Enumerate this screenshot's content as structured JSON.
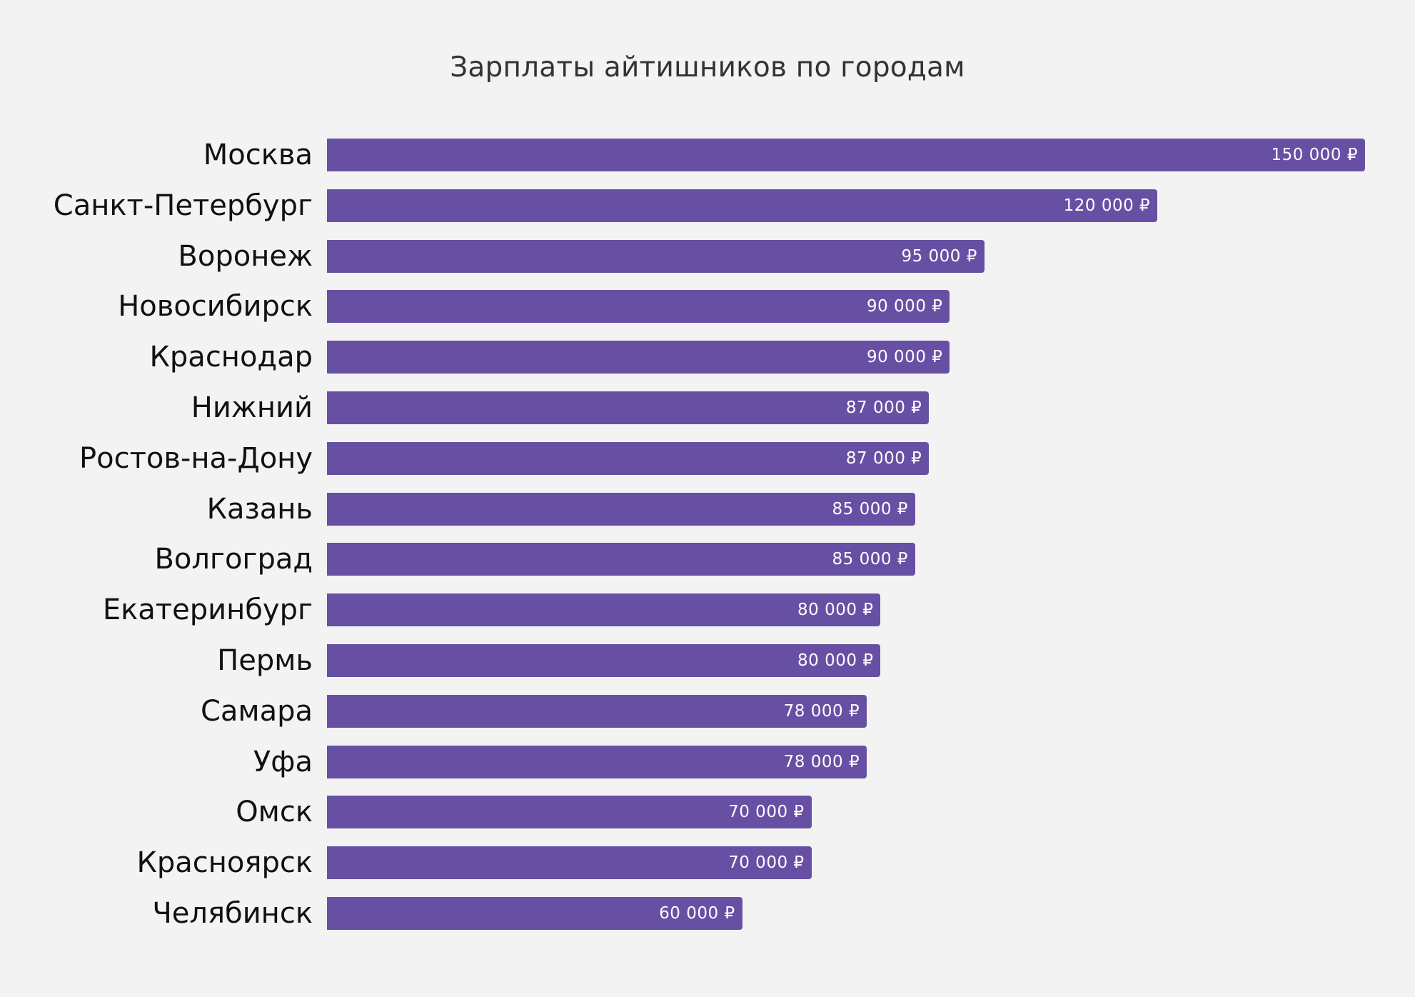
{
  "chart": {
    "title": "Зарплаты айтишников по городам",
    "bar_color": "#6750a4",
    "background": "#f3f3f4",
    "rows": [
      {
        "city": "Москва",
        "value": 150000,
        "label": "150 000 ₽"
      },
      {
        "city": "Санкт-Петербург",
        "value": 120000,
        "label": "120 000 ₽"
      },
      {
        "city": "Воронеж",
        "value": 95000,
        "label": "95 000 ₽"
      },
      {
        "city": "Новосибирск",
        "value": 90000,
        "label": "90 000 ₽"
      },
      {
        "city": "Краснодар",
        "value": 90000,
        "label": "90 000 ₽"
      },
      {
        "city": "Нижний",
        "value": 87000,
        "label": "87 000 ₽"
      },
      {
        "city": "Ростов-на-Дону",
        "value": 87000,
        "label": "87 000 ₽"
      },
      {
        "city": "Казань",
        "value": 85000,
        "label": "85 000 ₽"
      },
      {
        "city": "Волгоград",
        "value": 85000,
        "label": "85 000 ₽"
      },
      {
        "city": "Екатеринбург",
        "value": 80000,
        "label": "80 000 ₽"
      },
      {
        "city": "Пермь",
        "value": 80000,
        "label": "80 000 ₽"
      },
      {
        "city": "Самара",
        "value": 78000,
        "label": "78 000 ₽"
      },
      {
        "city": "Уфа",
        "value": 78000,
        "label": "78 000 ₽"
      },
      {
        "city": "Омск",
        "value": 70000,
        "label": "70 000 ₽"
      },
      {
        "city": "Красноярск",
        "value": 70000,
        "label": "70 000 ₽"
      },
      {
        "city": "Челябинск",
        "value": 60000,
        "label": "60 000 ₽"
      }
    ]
  },
  "chart_data": {
    "type": "bar",
    "orientation": "horizontal",
    "title": "Зарплаты айтишников по городам",
    "xlabel": "",
    "ylabel": "",
    "categories": [
      "Москва",
      "Санкт-Петербург",
      "Воронеж",
      "Новосибирск",
      "Краснодар",
      "Нижний",
      "Ростов-на-Дону",
      "Казань",
      "Волгоград",
      "Екатеринбург",
      "Пермь",
      "Самара",
      "Уфа",
      "Омск",
      "Красноярск",
      "Челябинск"
    ],
    "values": [
      150000,
      120000,
      95000,
      90000,
      90000,
      87000,
      87000,
      85000,
      85000,
      80000,
      80000,
      78000,
      78000,
      70000,
      70000,
      60000
    ],
    "data_labels": [
      "150 000 ₽",
      "120 000 ₽",
      "95 000 ₽",
      "90 000 ₽",
      "90 000 ₽",
      "87 000 ₽",
      "87 000 ₽",
      "85 000 ₽",
      "85 000 ₽",
      "80 000 ₽",
      "80 000 ₽",
      "78 000 ₽",
      "78 000 ₽",
      "70 000 ₽",
      "70 000 ₽",
      "60 000 ₽"
    ],
    "unit": "₽",
    "xlim": [
      0,
      150000
    ],
    "grid": false,
    "legend": "none",
    "color": "#6750a4"
  }
}
